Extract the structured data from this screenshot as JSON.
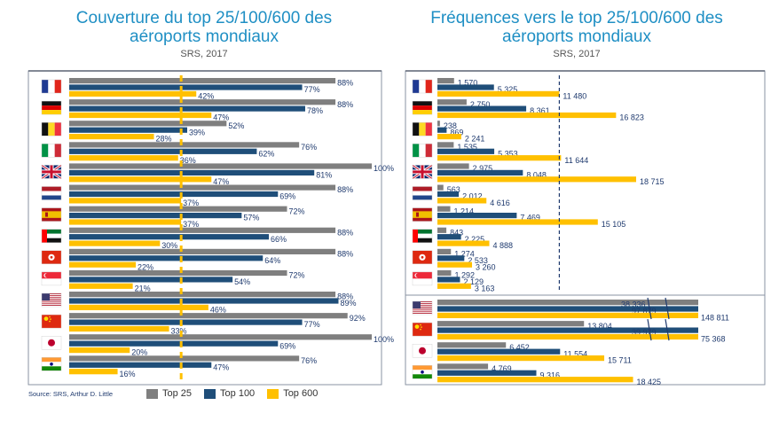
{
  "colors": {
    "top25": "#7f7f7f",
    "top100": "#1f4e79",
    "top600": "#ffc000",
    "accent": "#1f8fc4",
    "frame": "#8a93a3"
  },
  "left": {
    "title_1": "Couverture du top 25/100/600 des",
    "title_2": "aéroports mondiaux",
    "subtitle": "SRS, 2017"
  },
  "right": {
    "title_1": "Fréquences vers le top 25/100/600 des",
    "title_2": "aéroports mondiaux",
    "subtitle": "SRS, 2017"
  },
  "source": "Source: SRS, Arthur D. Little",
  "legend": [
    {
      "label": "Top 25",
      "color": "#7f7f7f"
    },
    {
      "label": "Top 100",
      "color": "#1f4e79"
    },
    {
      "label": "Top 600",
      "color": "#ffc000"
    }
  ],
  "flags": [
    "france-flag-icon",
    "germany-flag-icon",
    "belgium-flag-icon",
    "italy-flag-icon",
    "uk-flag-icon",
    "netherlands-flag-icon",
    "spain-flag-icon",
    "uae-flag-icon",
    "hong-kong-flag-icon",
    "singapore-flag-icon",
    "usa-flag-icon",
    "china-flag-icon",
    "japan-flag-icon",
    "india-flag-icon"
  ],
  "chart_data": [
    {
      "type": "bar",
      "orientation": "horizontal",
      "title": "Couverture du top 25/100/600 des aéroports mondiaux",
      "subtitle": "SRS, 2017",
      "unit": "%",
      "categories": [
        "France",
        "Allemagne",
        "Belgique",
        "Italie",
        "Royaume-Uni",
        "Pays-Bas",
        "Espagne",
        "Émirats arabes unis",
        "Hong Kong",
        "Singapour",
        "États-Unis",
        "Chine",
        "Japon",
        "Inde"
      ],
      "series": [
        {
          "name": "Top 25",
          "values": [
            88,
            88,
            52,
            76,
            100,
            88,
            72,
            88,
            88,
            72,
            88,
            92,
            100,
            76
          ]
        },
        {
          "name": "Top 100",
          "values": [
            77,
            78,
            39,
            62,
            81,
            69,
            57,
            66,
            64,
            54,
            89,
            77,
            69,
            47
          ]
        },
        {
          "name": "Top 600",
          "values": [
            42,
            47,
            28,
            36,
            47,
            37,
            37,
            30,
            22,
            21,
            46,
            33,
            20,
            16
          ]
        }
      ],
      "labels": {
        "Top 25": [
          "88%",
          "88%",
          "52%",
          "76%",
          "100%",
          "88%",
          "72%",
          "88%",
          "88%",
          "72%",
          "88%",
          "92%",
          "100%",
          "76%"
        ],
        "Top 100": [
          "77%",
          "78%",
          "39%",
          "62%",
          "81%",
          "69%",
          "57%",
          "66%",
          "64%",
          "54%",
          "89%",
          "77%",
          "69%",
          "47%"
        ],
        "Top 600": [
          "42%",
          "47%",
          "28%",
          "36%",
          "47%",
          "37%",
          "37%",
          "30%",
          "22%",
          "21%",
          "46%",
          "33%",
          "20%",
          "16%"
        ]
      },
      "reference_line": {
        "value": 37,
        "style": "dashed",
        "color": "#ffc000"
      },
      "xlim": [
        0,
        100
      ],
      "legend": "bottom"
    },
    {
      "type": "bar",
      "orientation": "horizontal",
      "title": "Fréquences vers le top 25/100/600 des aéroports mondiaux",
      "subtitle": "SRS, 2017",
      "categories": [
        "France",
        "Allemagne",
        "Belgique",
        "Italie",
        "Royaume-Uni",
        "Pays-Bas",
        "Espagne",
        "Émirats arabes unis",
        "Hong Kong",
        "Singapour",
        "États-Unis",
        "Chine",
        "Japon",
        "Inde"
      ],
      "series": [
        {
          "name": "Top 25",
          "values": [
            1570,
            2750,
            238,
            1535,
            2975,
            563,
            1214,
            843,
            1274,
            1292,
            38336,
            13804,
            6452,
            4769
          ]
        },
        {
          "name": "Top 100",
          "values": [
            5325,
            8361,
            869,
            5353,
            8048,
            2012,
            7469,
            2225,
            2533,
            2129,
            97879,
            39979,
            11554,
            9316
          ]
        },
        {
          "name": "Top 600",
          "values": [
            11480,
            16823,
            2241,
            11644,
            18715,
            4616,
            15105,
            4888,
            3260,
            3163,
            148811,
            75368,
            15711,
            18425
          ]
        }
      ],
      "labels": {
        "Top 25": [
          "1 570",
          "2 750",
          "238",
          "1 535",
          "2 975",
          "563",
          "1 214",
          "843",
          "1 274",
          "1 292",
          "38 336",
          "13 804",
          "6 452",
          "4 769"
        ],
        "Top 100": [
          "5 325",
          "8 361",
          "869",
          "5 353",
          "8 048",
          "2 012",
          "7 469",
          "2 225",
          "2 533",
          "2 129",
          "97 879",
          "39 979",
          "11 554",
          "9 316"
        ],
        "Top 600": [
          "11 480",
          "16 823",
          "2 241",
          "11 644",
          "18 715",
          "4 616",
          "15 105",
          "4 888",
          "3 260",
          "3 163",
          "148 811",
          "75 368",
          "15 711",
          "18 425"
        ]
      },
      "reference_line": {
        "value": 11480,
        "style": "dashed",
        "color": "#1f3a6e"
      },
      "axis_break": {
        "rows": [
          "États-Unis",
          "Chine"
        ]
      },
      "legend": "bottom"
    }
  ]
}
